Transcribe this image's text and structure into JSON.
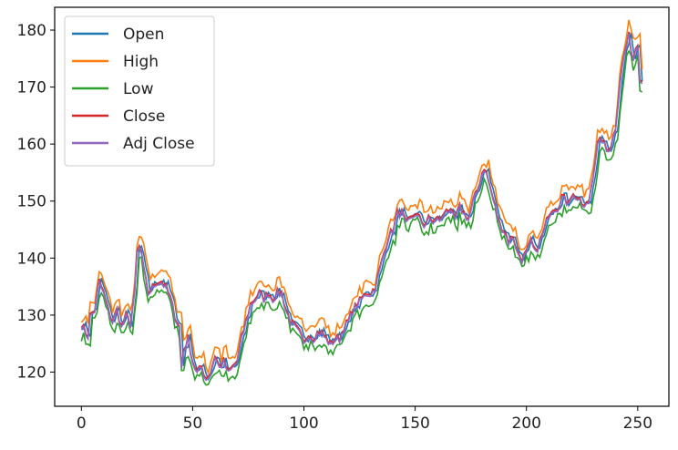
{
  "chart_data": {
    "type": "line",
    "title": "",
    "xlabel": "",
    "ylabel": "",
    "xlim": [
      -12,
      264
    ],
    "ylim": [
      114,
      184
    ],
    "xticks": [
      0,
      50,
      100,
      150,
      200,
      250
    ],
    "yticks": [
      120,
      130,
      140,
      150,
      160,
      170,
      180
    ],
    "grid": false,
    "legend": {
      "position": "upper-left",
      "entries": [
        "Open",
        "High",
        "Low",
        "Close",
        "Adj Close"
      ]
    },
    "x_start": 0,
    "x_step": 1,
    "close_anchor_points": [
      [
        0,
        128.5
      ],
      [
        2,
        127
      ],
      [
        3,
        126.5
      ],
      [
        4,
        130
      ],
      [
        6,
        131
      ],
      [
        8,
        136
      ],
      [
        10,
        134
      ],
      [
        12,
        131
      ],
      [
        14,
        129
      ],
      [
        16,
        131
      ],
      [
        18,
        128
      ],
      [
        20,
        130
      ],
      [
        22,
        128.5
      ],
      [
        24,
        134
      ],
      [
        25,
        141
      ],
      [
        26,
        142
      ],
      [
        27,
        141
      ],
      [
        28,
        138
      ],
      [
        30,
        134
      ],
      [
        32,
        135
      ],
      [
        34,
        136
      ],
      [
        36,
        136
      ],
      [
        38,
        135
      ],
      [
        40,
        133
      ],
      [
        42,
        130
      ],
      [
        44,
        128
      ],
      [
        45,
        121
      ],
      [
        46,
        124
      ],
      [
        48,
        126
      ],
      [
        50,
        122
      ],
      [
        52,
        120
      ],
      [
        54,
        121
      ],
      [
        56,
        119
      ],
      [
        58,
        120
      ],
      [
        60,
        123
      ],
      [
        62,
        121
      ],
      [
        64,
        122
      ],
      [
        66,
        120
      ],
      [
        68,
        121
      ],
      [
        70,
        122
      ],
      [
        72,
        126
      ],
      [
        74,
        129
      ],
      [
        76,
        132
      ],
      [
        78,
        133
      ],
      [
        80,
        134
      ],
      [
        82,
        133
      ],
      [
        84,
        134
      ],
      [
        86,
        133
      ],
      [
        88,
        134
      ],
      [
        90,
        134
      ],
      [
        92,
        131
      ],
      [
        94,
        129
      ],
      [
        96,
        128
      ],
      [
        98,
        127
      ],
      [
        100,
        125
      ],
      [
        102,
        127
      ],
      [
        104,
        126
      ],
      [
        106,
        127
      ],
      [
        108,
        127
      ],
      [
        110,
        126
      ],
      [
        112,
        125
      ],
      [
        114,
        126
      ],
      [
        116,
        126
      ],
      [
        118,
        128
      ],
      [
        120,
        129
      ],
      [
        122,
        131
      ],
      [
        124,
        132
      ],
      [
        126,
        133
      ],
      [
        128,
        134
      ],
      [
        130,
        134
      ],
      [
        132,
        135
      ],
      [
        134,
        138
      ],
      [
        136,
        141
      ],
      [
        138,
        144
      ],
      [
        140,
        145
      ],
      [
        142,
        148
      ],
      [
        144,
        148
      ],
      [
        146,
        146
      ],
      [
        148,
        147
      ],
      [
        150,
        148
      ],
      [
        152,
        147
      ],
      [
        154,
        146
      ],
      [
        156,
        147
      ],
      [
        158,
        146.5
      ],
      [
        160,
        147
      ],
      [
        162,
        147
      ],
      [
        164,
        149
      ],
      [
        166,
        148
      ],
      [
        168,
        147
      ],
      [
        170,
        149
      ],
      [
        172,
        148
      ],
      [
        174,
        147
      ],
      [
        176,
        150
      ],
      [
        178,
        152
      ],
      [
        180,
        155
      ],
      [
        181,
        156
      ],
      [
        182,
        155
      ],
      [
        184,
        152
      ],
      [
        186,
        149
      ],
      [
        188,
        146
      ],
      [
        190,
        145
      ],
      [
        192,
        143
      ],
      [
        194,
        144
      ],
      [
        196,
        141
      ],
      [
        198,
        140
      ],
      [
        200,
        141
      ],
      [
        202,
        143
      ],
      [
        204,
        141
      ],
      [
        206,
        143
      ],
      [
        208,
        145
      ],
      [
        210,
        148
      ],
      [
        212,
        149
      ],
      [
        214,
        149
      ],
      [
        216,
        151
      ],
      [
        218,
        150
      ],
      [
        220,
        151
      ],
      [
        222,
        151
      ],
      [
        224,
        150
      ],
      [
        226,
        149
      ],
      [
        228,
        150
      ],
      [
        230,
        155
      ],
      [
        232,
        160
      ],
      [
        234,
        161
      ],
      [
        236,
        159
      ],
      [
        238,
        160
      ],
      [
        240,
        163
      ],
      [
        242,
        171
      ],
      [
        244,
        176
      ],
      [
        246,
        179
      ],
      [
        247,
        177
      ],
      [
        248,
        175
      ],
      [
        249,
        177
      ],
      [
        250,
        178
      ],
      [
        251,
        172
      ],
      [
        252,
        171
      ]
    ],
    "series": [
      {
        "name": "Open",
        "color": "#1f77b4"
      },
      {
        "name": "High",
        "color": "#ff7f0e"
      },
      {
        "name": "Low",
        "color": "#2ca02c"
      },
      {
        "name": "Close",
        "color": "#d62728"
      },
      {
        "name": "Adj Close",
        "color": "#9467bd"
      }
    ]
  }
}
